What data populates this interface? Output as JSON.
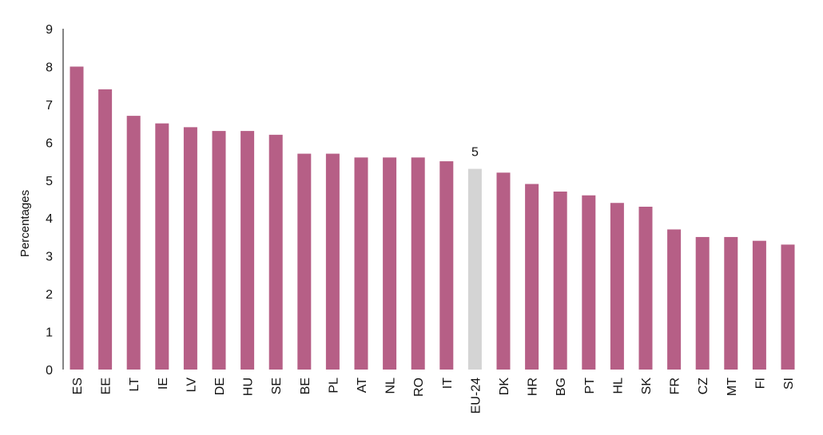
{
  "chart_data": {
    "type": "bar",
    "title": "",
    "xlabel": "",
    "ylabel": "Percentages",
    "ylim": [
      0,
      9
    ],
    "yticks": [
      0,
      1,
      2,
      3,
      4,
      5,
      6,
      7,
      8,
      9
    ],
    "grid": false,
    "legend": "none",
    "categories": [
      "ES",
      "EE",
      "LT",
      "IE",
      "LV",
      "DE",
      "HU",
      "SE",
      "BE",
      "PL",
      "AT",
      "NL",
      "RO",
      "IT",
      "EU-24",
      "DK",
      "HR",
      "BG",
      "PT",
      "HL",
      "SK",
      "FR",
      "CZ",
      "MT",
      "FI",
      "SI"
    ],
    "values": [
      8.0,
      7.4,
      6.7,
      6.5,
      6.4,
      6.3,
      6.3,
      6.2,
      5.7,
      5.7,
      5.6,
      5.6,
      5.6,
      5.5,
      5.3,
      5.2,
      4.9,
      4.7,
      4.6,
      4.4,
      4.3,
      3.7,
      3.5,
      3.5,
      3.4,
      3.3
    ],
    "highlight_category": "EU-24",
    "highlight_label": "5",
    "colors": {
      "bar": "#b65f86",
      "highlight": "#d4d4d4",
      "axis": "#333333"
    }
  }
}
